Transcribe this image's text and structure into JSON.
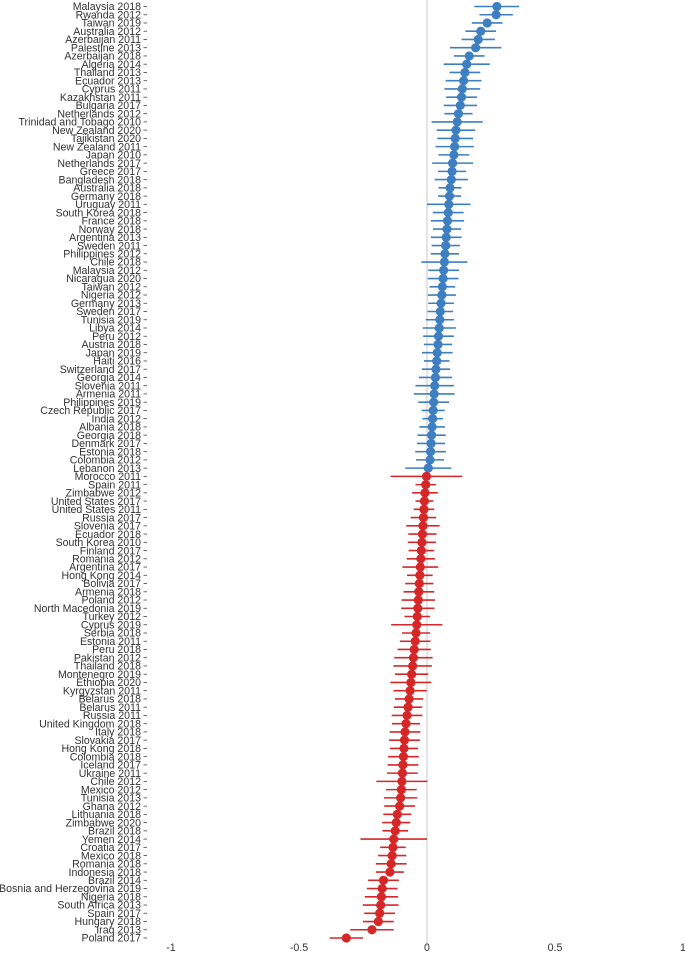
{
  "chart_data": {
    "type": "scatter",
    "subtype": "dot-and-whisker",
    "title": "",
    "xlabel": "",
    "ylabel": "",
    "xlim": [
      -1,
      1
    ],
    "xticks": [
      -1,
      -0.5,
      0,
      0.5,
      1
    ],
    "xtick_labels": [
      "-1",
      "-0.5",
      "0",
      "0.5",
      "1"
    ],
    "reference_line": 0,
    "grid": false,
    "colors": {
      "positive": "#3d7fc1",
      "negative": "#d62728",
      "reference": "#d9d9d9"
    },
    "points": [
      {
        "label": "Malaysia 2018",
        "value": 0.273,
        "lo": 0.185,
        "hi": 0.36
      },
      {
        "label": "Rwanda 2012",
        "value": 0.27,
        "lo": 0.205,
        "hi": 0.335
      },
      {
        "label": "Taiwan 2019",
        "value": 0.235,
        "lo": 0.175,
        "hi": 0.295
      },
      {
        "label": "Australia 2012",
        "value": 0.21,
        "lo": 0.15,
        "hi": 0.27
      },
      {
        "label": "Azerbaijan 2011",
        "value": 0.2,
        "lo": 0.135,
        "hi": 0.265
      },
      {
        "label": "Palestine 2013",
        "value": 0.19,
        "lo": 0.09,
        "hi": 0.29
      },
      {
        "label": "Azerbaijan 2018",
        "value": 0.165,
        "lo": 0.105,
        "hi": 0.225
      },
      {
        "label": "Algeria 2014",
        "value": 0.155,
        "lo": 0.065,
        "hi": 0.245
      },
      {
        "label": "Thailand 2013",
        "value": 0.148,
        "lo": 0.088,
        "hi": 0.208
      },
      {
        "label": "Ecuador 2013",
        "value": 0.143,
        "lo": 0.073,
        "hi": 0.213
      },
      {
        "label": "Cyprus 2011",
        "value": 0.138,
        "lo": 0.068,
        "hi": 0.208
      },
      {
        "label": "Kazakhstan 2011",
        "value": 0.135,
        "lo": 0.075,
        "hi": 0.195
      },
      {
        "label": "Bulgaria 2017",
        "value": 0.13,
        "lo": 0.065,
        "hi": 0.195
      },
      {
        "label": "Netherlands 2012",
        "value": 0.123,
        "lo": 0.068,
        "hi": 0.178
      },
      {
        "label": "Trinidad and Tobago 2010",
        "value": 0.118,
        "lo": 0.018,
        "hi": 0.218
      },
      {
        "label": "New Zealand 2020",
        "value": 0.113,
        "lo": 0.038,
        "hi": 0.188
      },
      {
        "label": "Tajikistan 2020",
        "value": 0.11,
        "lo": 0.04,
        "hi": 0.18
      },
      {
        "label": "New Zealand 2011",
        "value": 0.108,
        "lo": 0.033,
        "hi": 0.183
      },
      {
        "label": "Japan 2010",
        "value": 0.105,
        "lo": 0.045,
        "hi": 0.165
      },
      {
        "label": "Netherlands 2017",
        "value": 0.1,
        "lo": 0.02,
        "hi": 0.18
      },
      {
        "label": "Greece 2017",
        "value": 0.098,
        "lo": 0.043,
        "hi": 0.153
      },
      {
        "label": "Bangladesh 2018",
        "value": 0.095,
        "lo": 0.03,
        "hi": 0.16
      },
      {
        "label": "Australia 2018",
        "value": 0.09,
        "lo": 0.045,
        "hi": 0.135
      },
      {
        "label": "Germany 2018",
        "value": 0.088,
        "lo": 0.043,
        "hi": 0.133
      },
      {
        "label": "Uruguay 2011",
        "value": 0.085,
        "lo": 0.0,
        "hi": 0.17
      },
      {
        "label": "South Korea 2018",
        "value": 0.083,
        "lo": 0.023,
        "hi": 0.143
      },
      {
        "label": "France 2018",
        "value": 0.08,
        "lo": 0.015,
        "hi": 0.145
      },
      {
        "label": "Norway 2018",
        "value": 0.078,
        "lo": 0.023,
        "hi": 0.133
      },
      {
        "label": "Argentina 2013",
        "value": 0.075,
        "lo": 0.015,
        "hi": 0.135
      },
      {
        "label": "Sweden 2011",
        "value": 0.073,
        "lo": 0.018,
        "hi": 0.128
      },
      {
        "label": "Philippines 2012",
        "value": 0.07,
        "lo": 0.015,
        "hi": 0.125
      },
      {
        "label": "Chile 2018",
        "value": 0.068,
        "lo": -0.022,
        "hi": 0.158
      },
      {
        "label": "Malaysia 2012",
        "value": 0.065,
        "lo": 0.005,
        "hi": 0.125
      },
      {
        "label": "Nicaragua 2020",
        "value": 0.063,
        "lo": 0.003,
        "hi": 0.123
      },
      {
        "label": "Taiwan 2012",
        "value": 0.06,
        "lo": 0.01,
        "hi": 0.11
      },
      {
        "label": "Nigeria 2012",
        "value": 0.058,
        "lo": 0.003,
        "hi": 0.113
      },
      {
        "label": "Germany 2013",
        "value": 0.055,
        "lo": 0.005,
        "hi": 0.105
      },
      {
        "label": "Sweden 2017",
        "value": 0.052,
        "lo": 0.002,
        "hi": 0.102
      },
      {
        "label": "Tunisia 2019",
        "value": 0.05,
        "lo": -0.005,
        "hi": 0.105
      },
      {
        "label": "Libya 2014",
        "value": 0.048,
        "lo": -0.017,
        "hi": 0.113
      },
      {
        "label": "Peru 2012",
        "value": 0.045,
        "lo": -0.015,
        "hi": 0.105
      },
      {
        "label": "Austria 2018",
        "value": 0.043,
        "lo": -0.012,
        "hi": 0.098
      },
      {
        "label": "Japan 2019",
        "value": 0.04,
        "lo": -0.02,
        "hi": 0.1
      },
      {
        "label": "Haiti 2016",
        "value": 0.038,
        "lo": -0.012,
        "hi": 0.088
      },
      {
        "label": "Switzerland 2017",
        "value": 0.035,
        "lo": -0.02,
        "hi": 0.09
      },
      {
        "label": "Georgia 2014",
        "value": 0.033,
        "lo": -0.032,
        "hi": 0.098
      },
      {
        "label": "Slovenia 2011",
        "value": 0.03,
        "lo": -0.045,
        "hi": 0.105
      },
      {
        "label": "Armenia 2011",
        "value": 0.028,
        "lo": -0.052,
        "hi": 0.108
      },
      {
        "label": "Philippines 2019",
        "value": 0.026,
        "lo": -0.034,
        "hi": 0.086
      },
      {
        "label": "Czech Republic 2017",
        "value": 0.024,
        "lo": -0.021,
        "hi": 0.069
      },
      {
        "label": "India 2012",
        "value": 0.022,
        "lo": -0.018,
        "hi": 0.062
      },
      {
        "label": "Albania 2018",
        "value": 0.02,
        "lo": -0.03,
        "hi": 0.07
      },
      {
        "label": "Georgia 2018",
        "value": 0.018,
        "lo": -0.037,
        "hi": 0.073
      },
      {
        "label": "Denmark 2017",
        "value": 0.016,
        "lo": -0.039,
        "hi": 0.071
      },
      {
        "label": "Estonia 2018",
        "value": 0.014,
        "lo": -0.046,
        "hi": 0.074
      },
      {
        "label": "Colombia 2012",
        "value": 0.012,
        "lo": -0.043,
        "hi": 0.067
      },
      {
        "label": "Lebanon 2013",
        "value": 0.005,
        "lo": -0.085,
        "hi": 0.095
      },
      {
        "label": "Morocco 2011",
        "value": -0.002,
        "lo": -0.142,
        "hi": 0.138
      },
      {
        "label": "Spain 2011",
        "value": -0.005,
        "lo": -0.045,
        "hi": 0.035
      },
      {
        "label": "Zimbabwe 2012",
        "value": -0.008,
        "lo": -0.058,
        "hi": 0.042
      },
      {
        "label": "United States 2017",
        "value": -0.01,
        "lo": -0.045,
        "hi": 0.025
      },
      {
        "label": "United States 2011",
        "value": -0.012,
        "lo": -0.052,
        "hi": 0.028
      },
      {
        "label": "Russia 2017",
        "value": -0.014,
        "lo": -0.064,
        "hi": 0.036
      },
      {
        "label": "Slovenia 2017",
        "value": -0.016,
        "lo": -0.081,
        "hi": 0.049
      },
      {
        "label": "Ecuador 2018",
        "value": -0.018,
        "lo": -0.073,
        "hi": 0.037
      },
      {
        "label": "South Korea 2010",
        "value": -0.02,
        "lo": -0.075,
        "hi": 0.035
      },
      {
        "label": "Finland 2017",
        "value": -0.022,
        "lo": -0.072,
        "hi": 0.028
      },
      {
        "label": "Romania 2012",
        "value": -0.024,
        "lo": -0.079,
        "hi": 0.031
      },
      {
        "label": "Argentina 2017",
        "value": -0.026,
        "lo": -0.096,
        "hi": 0.044
      },
      {
        "label": "Hong Kong 2014",
        "value": -0.028,
        "lo": -0.078,
        "hi": 0.022
      },
      {
        "label": "Bolivia 2017",
        "value": -0.03,
        "lo": -0.085,
        "hi": 0.025
      },
      {
        "label": "Armenia 2018",
        "value": -0.032,
        "lo": -0.092,
        "hi": 0.028
      },
      {
        "label": "Poland 2012",
        "value": -0.034,
        "lo": -0.099,
        "hi": 0.031
      },
      {
        "label": "North Macedonia 2019",
        "value": -0.036,
        "lo": -0.101,
        "hi": 0.029
      },
      {
        "label": "Turkey 2012",
        "value": -0.038,
        "lo": -0.088,
        "hi": 0.012
      },
      {
        "label": "Cyprus 2019",
        "value": -0.04,
        "lo": -0.14,
        "hi": 0.06
      },
      {
        "label": "Serbia 2018",
        "value": -0.043,
        "lo": -0.098,
        "hi": 0.012
      },
      {
        "label": "Estonia 2011",
        "value": -0.046,
        "lo": -0.106,
        "hi": 0.014
      },
      {
        "label": "Peru 2018",
        "value": -0.05,
        "lo": -0.115,
        "hi": 0.015
      },
      {
        "label": "Pakistan 2012",
        "value": -0.053,
        "lo": -0.128,
        "hi": 0.022
      },
      {
        "label": "Thailand 2018",
        "value": -0.056,
        "lo": -0.131,
        "hi": 0.019
      },
      {
        "label": "Montenegro 2019",
        "value": -0.06,
        "lo": -0.125,
        "hi": 0.005
      },
      {
        "label": "Ethiopia 2020",
        "value": -0.063,
        "lo": -0.143,
        "hi": 0.017
      },
      {
        "label": "Kyrgyzstan 2011",
        "value": -0.066,
        "lo": -0.131,
        "hi": -0.001
      },
      {
        "label": "Belarus 2018",
        "value": -0.07,
        "lo": -0.125,
        "hi": -0.015
      },
      {
        "label": "Belarus 2011",
        "value": -0.074,
        "lo": -0.129,
        "hi": -0.019
      },
      {
        "label": "Russia 2011",
        "value": -0.078,
        "lo": -0.138,
        "hi": -0.018
      },
      {
        "label": "United Kingdom 2018",
        "value": -0.082,
        "lo": -0.137,
        "hi": -0.027
      },
      {
        "label": "Italy 2018",
        "value": -0.086,
        "lo": -0.146,
        "hi": -0.026
      },
      {
        "label": "Slovakia 2017",
        "value": -0.088,
        "lo": -0.148,
        "hi": -0.028
      },
      {
        "label": "Hong Kong 2018",
        "value": -0.09,
        "lo": -0.145,
        "hi": -0.035
      },
      {
        "label": "Colombia 2018",
        "value": -0.092,
        "lo": -0.152,
        "hi": -0.032
      },
      {
        "label": "Iceland 2017",
        "value": -0.094,
        "lo": -0.154,
        "hi": -0.034
      },
      {
        "label": "Ukraine 2011",
        "value": -0.096,
        "lo": -0.156,
        "hi": -0.036
      },
      {
        "label": "Chile 2012",
        "value": -0.098,
        "lo": -0.198,
        "hi": 0.002
      },
      {
        "label": "Mexico 2012",
        "value": -0.1,
        "lo": -0.16,
        "hi": -0.04
      },
      {
        "label": "Tunisia 2013",
        "value": -0.103,
        "lo": -0.168,
        "hi": -0.038
      },
      {
        "label": "Ghana 2012",
        "value": -0.107,
        "lo": -0.167,
        "hi": -0.047
      },
      {
        "label": "Lithuania 2018",
        "value": -0.116,
        "lo": -0.171,
        "hi": -0.061
      },
      {
        "label": "Zimbabwe 2020",
        "value": -0.12,
        "lo": -0.175,
        "hi": -0.065
      },
      {
        "label": "Brazil 2018",
        "value": -0.124,
        "lo": -0.174,
        "hi": -0.074
      },
      {
        "label": "Yemen 2014",
        "value": -0.13,
        "lo": -0.26,
        "hi": 0.0
      },
      {
        "label": "Croatia 2017",
        "value": -0.133,
        "lo": -0.183,
        "hi": -0.083
      },
      {
        "label": "Mexico 2018",
        "value": -0.136,
        "lo": -0.191,
        "hi": -0.081
      },
      {
        "label": "Romania 2018",
        "value": -0.14,
        "lo": -0.2,
        "hi": -0.08
      },
      {
        "label": "Indonesia 2018",
        "value": -0.145,
        "lo": -0.2,
        "hi": -0.09
      },
      {
        "label": "Brazil 2014",
        "value": -0.17,
        "lo": -0.23,
        "hi": -0.11
      },
      {
        "label": "Bosnia and Herzegovina 2019",
        "value": -0.175,
        "lo": -0.235,
        "hi": -0.115
      },
      {
        "label": "Nigeria 2018",
        "value": -0.178,
        "lo": -0.243,
        "hi": -0.113
      },
      {
        "label": "South Africa 2013",
        "value": -0.181,
        "lo": -0.251,
        "hi": -0.111
      },
      {
        "label": "Spain 2017",
        "value": -0.185,
        "lo": -0.245,
        "hi": -0.125
      },
      {
        "label": "Hungary 2018",
        "value": -0.19,
        "lo": -0.25,
        "hi": -0.13
      },
      {
        "label": "Iraq 2013",
        "value": -0.215,
        "lo": -0.3,
        "hi": -0.13
      },
      {
        "label": "Poland 2017",
        "value": -0.315,
        "lo": -0.38,
        "hi": -0.25
      }
    ]
  }
}
